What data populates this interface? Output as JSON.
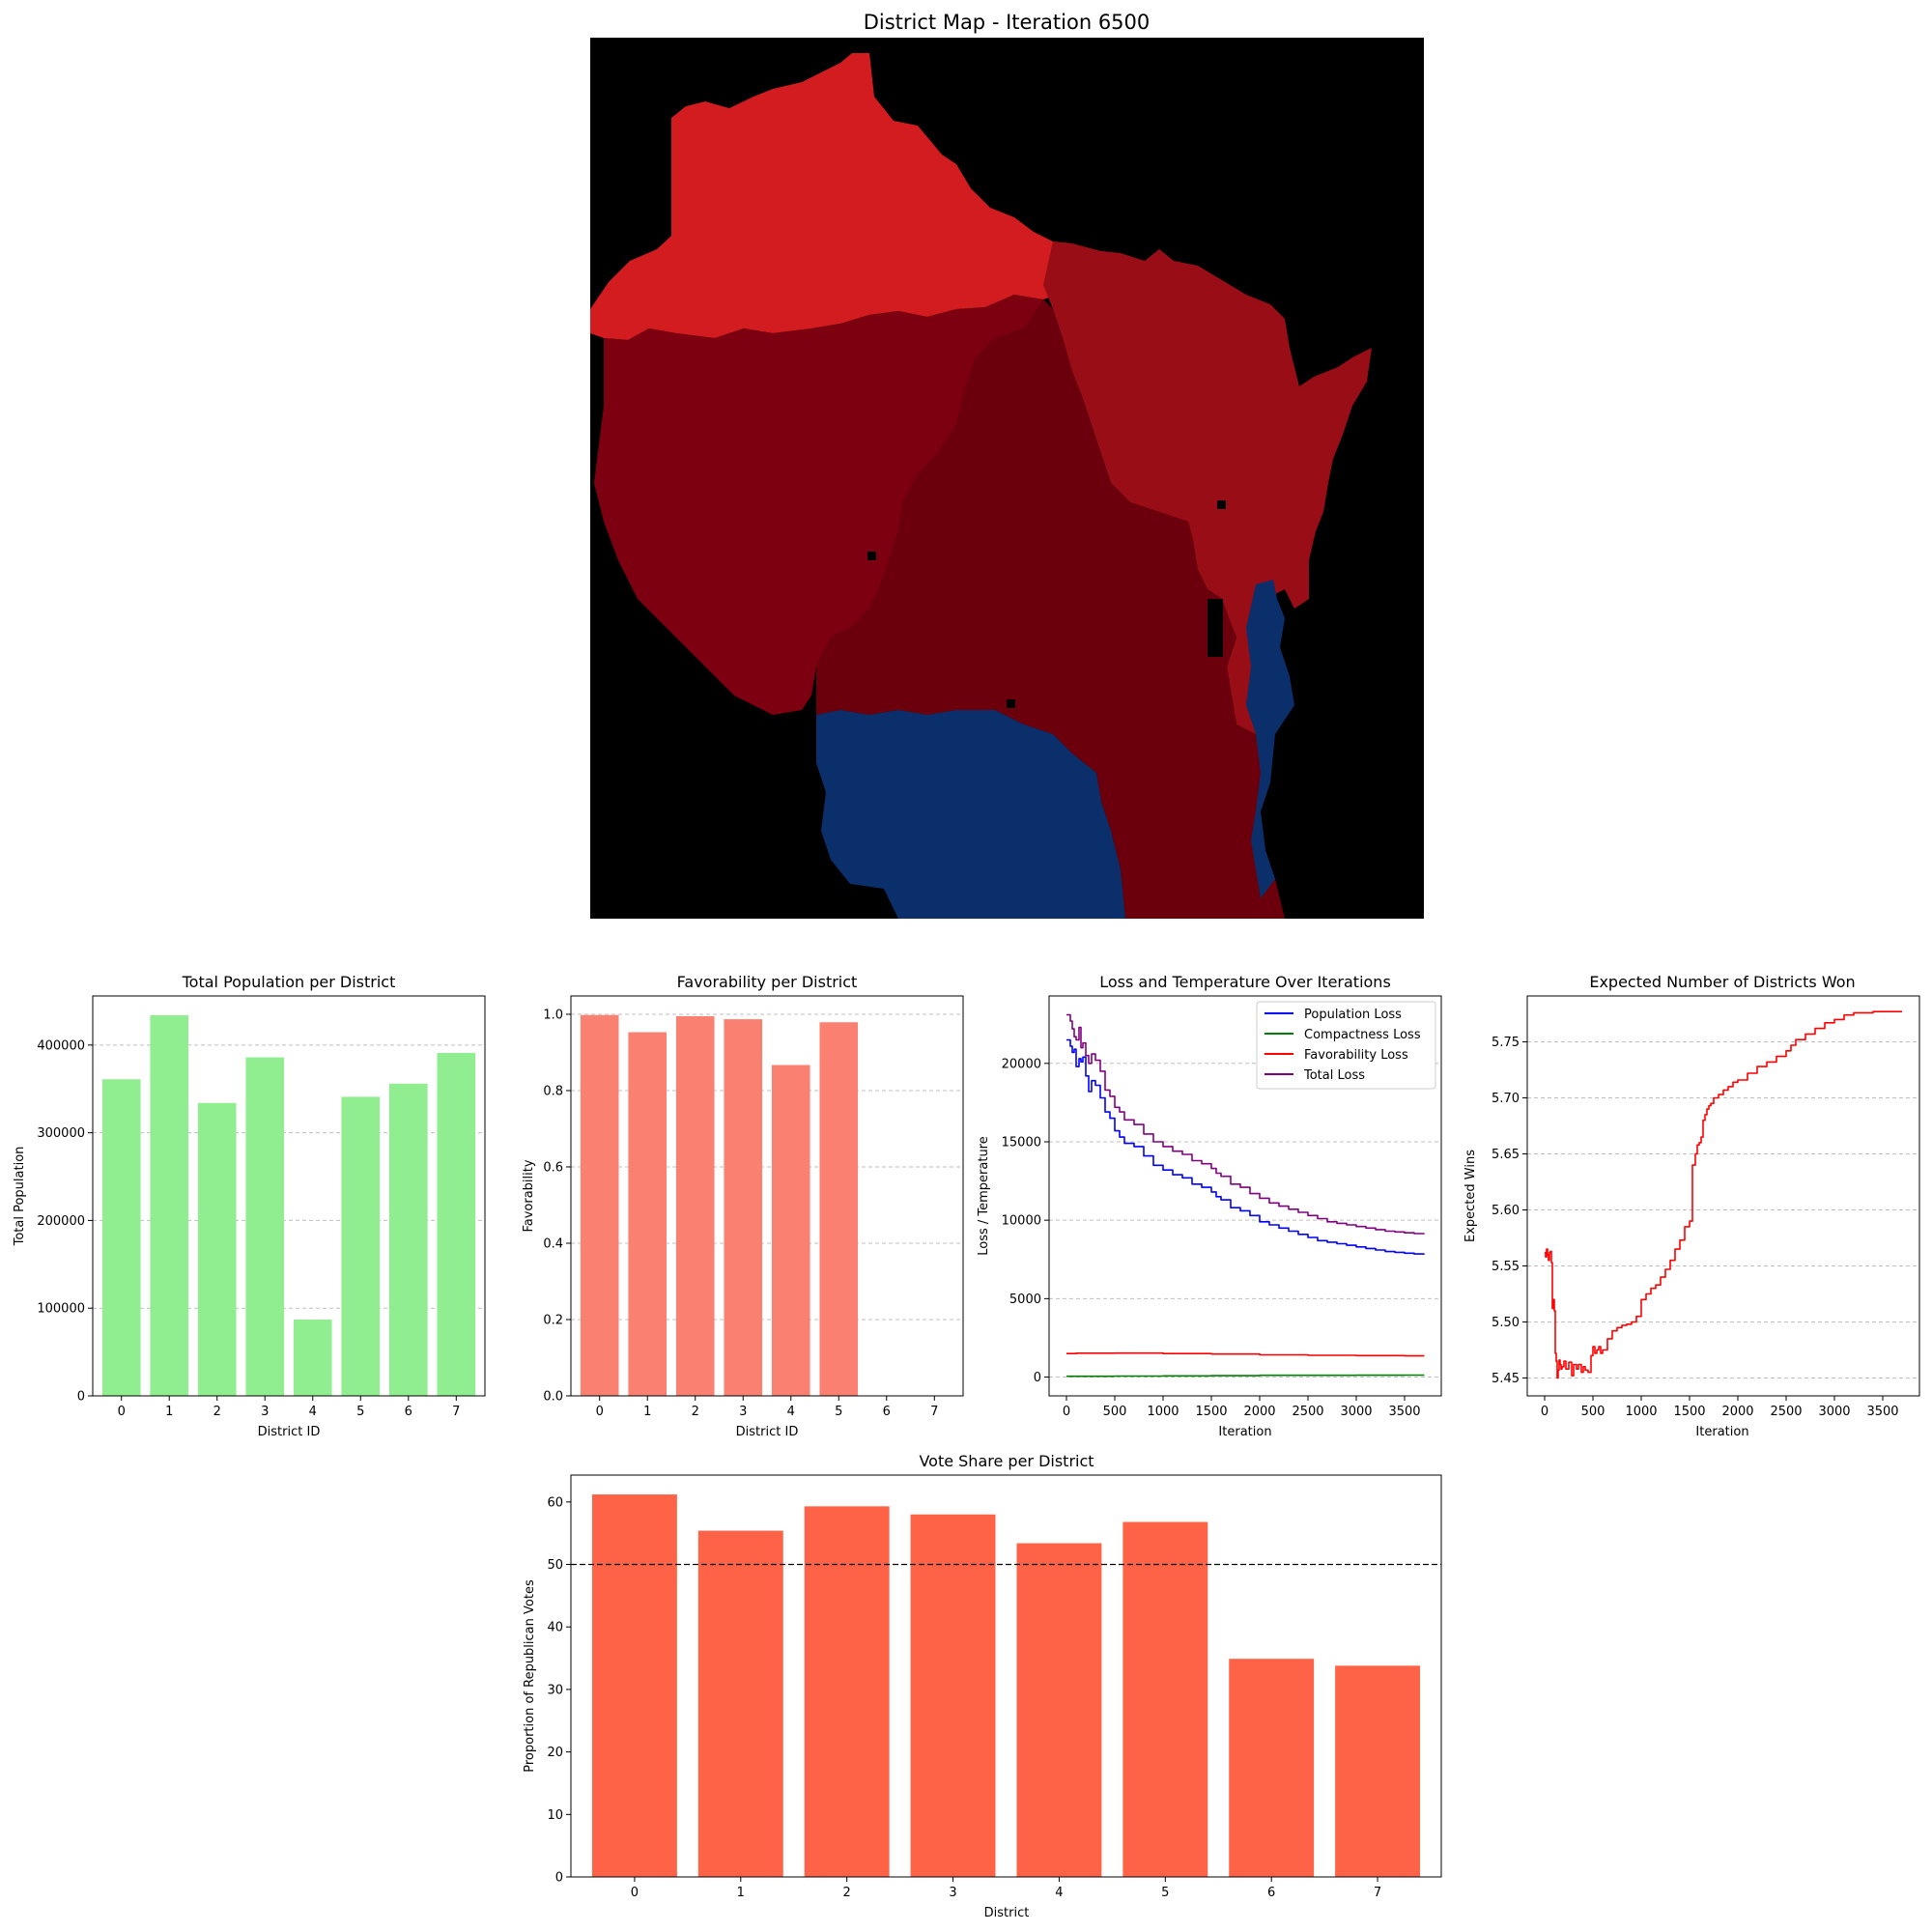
{
  "map": {
    "title": "District Map - Iteration 6500",
    "colors": {
      "background": "#000000",
      "north": "#d31c1f",
      "northeast": "#980d16",
      "center": "#6b000c",
      "west": "#7c0010",
      "dem": "#0a2f6b"
    }
  },
  "chart_data": [
    {
      "id": "population",
      "type": "bar",
      "title": "Total Population per District",
      "xlabel": "District ID",
      "ylabel": "Total Population",
      "categories": [
        "0",
        "1",
        "2",
        "3",
        "4",
        "5",
        "6",
        "7"
      ],
      "values": [
        361000,
        434000,
        334000,
        386000,
        87000,
        341000,
        356000,
        391000
      ],
      "ylim": [
        0,
        456000
      ],
      "yticks": [
        0,
        100000,
        200000,
        300000,
        400000
      ],
      "ytick_labels": [
        "0",
        "100000",
        "200000",
        "300000",
        "400000"
      ],
      "color": "#90ee90",
      "grid": true
    },
    {
      "id": "favorability",
      "type": "bar",
      "title": "Favorability per District",
      "xlabel": "District ID",
      "ylabel": "Favorability",
      "categories": [
        "0",
        "1",
        "2",
        "3",
        "4",
        "5",
        "6",
        "7"
      ],
      "values": [
        0.998,
        0.953,
        0.995,
        0.987,
        0.867,
        0.979,
        0,
        0
      ],
      "ylim": [
        0,
        1.048
      ],
      "yticks": [
        0,
        0.2,
        0.4,
        0.6,
        0.8,
        1.0
      ],
      "ytick_labels": [
        "0.0",
        "0.2",
        "0.4",
        "0.6",
        "0.8",
        "1.0"
      ],
      "color": "#fa8072",
      "grid": true
    },
    {
      "id": "loss",
      "type": "line",
      "title": "Loss and Temperature Over Iterations",
      "xlabel": "Iteration",
      "ylabel": "Loss / Temperature",
      "xlim": [
        -180,
        3880
      ],
      "ylim": [
        -1200,
        24300
      ],
      "xticks": [
        0,
        500,
        1000,
        1500,
        2000,
        2500,
        3000,
        3500
      ],
      "xtick_labels": [
        "0",
        "500",
        "1000",
        "1500",
        "2000",
        "2500",
        "3000",
        "3500"
      ],
      "yticks": [
        0,
        5000,
        10000,
        15000,
        20000
      ],
      "ytick_labels": [
        "0",
        "5000",
        "10000",
        "15000",
        "20000"
      ],
      "legend_position": "upper right",
      "grid": true,
      "series": [
        {
          "name": "Population Loss",
          "color": "#0000ff",
          "x": [
            0,
            40,
            60,
            80,
            100,
            130,
            150,
            170,
            200,
            230,
            260,
            300,
            350,
            400,
            450,
            500,
            550,
            600,
            700,
            800,
            900,
            1000,
            1100,
            1200,
            1300,
            1400,
            1500,
            1550,
            1600,
            1700,
            1800,
            1900,
            2000,
            2100,
            2200,
            2300,
            2400,
            2500,
            2600,
            2700,
            2800,
            2900,
            3000,
            3100,
            3200,
            3300,
            3400,
            3500,
            3600,
            3700
          ],
          "y": [
            21500,
            21100,
            20700,
            20900,
            19800,
            20300,
            20100,
            20400,
            19200,
            18200,
            18900,
            18600,
            17800,
            16900,
            16500,
            15700,
            15300,
            14900,
            14700,
            14100,
            13500,
            13200,
            12900,
            12700,
            12300,
            12100,
            11800,
            11500,
            11300,
            10800,
            10600,
            10300,
            9900,
            9700,
            9500,
            9300,
            9100,
            8900,
            8700,
            8600,
            8500,
            8400,
            8300,
            8200,
            8100,
            8000,
            7950,
            7900,
            7850,
            7800
          ]
        },
        {
          "name": "Compactness Loss",
          "color": "#008000",
          "x": [
            0,
            500,
            1000,
            1500,
            2000,
            2500,
            3000,
            3500,
            3700
          ],
          "y": [
            50,
            60,
            75,
            90,
            110,
            115,
            120,
            125,
            130
          ]
        },
        {
          "name": "Favorability Loss",
          "color": "#ff0000",
          "x": [
            0,
            100,
            500,
            1000,
            1500,
            2000,
            2500,
            3000,
            3500,
            3700
          ],
          "y": [
            1500,
            1520,
            1530,
            1500,
            1470,
            1420,
            1390,
            1370,
            1350,
            1340
          ]
        },
        {
          "name": "Total Loss",
          "color": "#800080",
          "x": [
            0,
            40,
            60,
            80,
            100,
            130,
            150,
            170,
            200,
            230,
            260,
            300,
            350,
            400,
            450,
            500,
            550,
            600,
            700,
            800,
            900,
            1000,
            1100,
            1200,
            1300,
            1400,
            1500,
            1550,
            1600,
            1700,
            1800,
            1900,
            2000,
            2100,
            2200,
            2300,
            2400,
            2500,
            2600,
            2700,
            2800,
            2900,
            3000,
            3100,
            3200,
            3300,
            3400,
            3500,
            3600,
            3700
          ],
          "y": [
            23100,
            22700,
            22200,
            21700,
            21500,
            22300,
            21000,
            21300,
            20500,
            20000,
            20600,
            20200,
            19500,
            18300,
            17900,
            17200,
            16900,
            16400,
            16100,
            15500,
            15000,
            14700,
            14400,
            14200,
            13800,
            13600,
            13300,
            13000,
            12800,
            12300,
            12100,
            11700,
            11400,
            11100,
            10900,
            10700,
            10500,
            10300,
            10100,
            9900,
            9800,
            9700,
            9600,
            9500,
            9400,
            9300,
            9250,
            9200,
            9150,
            9100
          ]
        }
      ]
    },
    {
      "id": "wins",
      "type": "line",
      "title": "Expected Number of Districts Won",
      "xlabel": "Iteration",
      "ylabel": "Expected Wins",
      "xlim": [
        -180,
        3880
      ],
      "ylim": [
        5.434,
        5.791
      ],
      "xticks": [
        0,
        500,
        1000,
        1500,
        2000,
        2500,
        3000,
        3500
      ],
      "xtick_labels": [
        "0",
        "500",
        "1000",
        "1500",
        "2000",
        "2500",
        "3000",
        "3500"
      ],
      "yticks": [
        5.45,
        5.5,
        5.55,
        5.6,
        5.65,
        5.7,
        5.75
      ],
      "ytick_labels": [
        "5.45",
        "5.50",
        "5.55",
        "5.60",
        "5.65",
        "5.70",
        "5.75"
      ],
      "grid": true,
      "series": [
        {
          "name": "Expected Wins",
          "color": "#ff0000",
          "x": [
            0,
            10,
            20,
            30,
            40,
            50,
            60,
            70,
            80,
            90,
            100,
            110,
            120,
            130,
            140,
            150,
            160,
            170,
            180,
            200,
            220,
            250,
            280,
            300,
            330,
            350,
            380,
            400,
            420,
            450,
            480,
            500,
            520,
            540,
            560,
            580,
            600,
            650,
            700,
            750,
            800,
            850,
            900,
            950,
            1000,
            1050,
            1100,
            1150,
            1200,
            1250,
            1300,
            1350,
            1400,
            1450,
            1500,
            1530,
            1560,
            1580,
            1600,
            1620,
            1640,
            1660,
            1680,
            1700,
            1720,
            1750,
            1800,
            1850,
            1900,
            1950,
            2000,
            2100,
            2200,
            2300,
            2400,
            2500,
            2550,
            2600,
            2700,
            2800,
            2900,
            3000,
            3100,
            3200,
            3300,
            3400,
            3500,
            3600,
            3700
          ],
          "y": [
            5.562,
            5.558,
            5.565,
            5.56,
            5.555,
            5.562,
            5.563,
            5.553,
            5.512,
            5.52,
            5.51,
            5.472,
            5.465,
            5.45,
            5.457,
            5.466,
            5.462,
            5.458,
            5.46,
            5.465,
            5.458,
            5.464,
            5.452,
            5.462,
            5.458,
            5.462,
            5.455,
            5.46,
            5.457,
            5.455,
            5.47,
            5.478,
            5.472,
            5.475,
            5.478,
            5.472,
            5.475,
            5.485,
            5.492,
            5.495,
            5.497,
            5.498,
            5.5,
            5.505,
            5.52,
            5.525,
            5.53,
            5.533,
            5.54,
            5.547,
            5.555,
            5.565,
            5.573,
            5.585,
            5.59,
            5.64,
            5.65,
            5.658,
            5.66,
            5.665,
            5.68,
            5.685,
            5.69,
            5.693,
            5.695,
            5.7,
            5.703,
            5.707,
            5.71,
            5.714,
            5.716,
            5.722,
            5.728,
            5.732,
            5.737,
            5.742,
            5.747,
            5.752,
            5.757,
            5.762,
            5.767,
            5.77,
            5.774,
            5.776,
            5.776,
            5.777,
            5.777,
            5.777,
            5.777
          ]
        }
      ]
    },
    {
      "id": "voteshare",
      "type": "bar",
      "title": "Vote Share per District",
      "xlabel": "District",
      "ylabel": "Proportion of Republican Votes",
      "categories": [
        "0",
        "1",
        "2",
        "3",
        "4",
        "5",
        "6",
        "7"
      ],
      "values": [
        61.2,
        55.4,
        59.3,
        58.0,
        53.4,
        56.8,
        34.9,
        33.8
      ],
      "ylim": [
        0,
        64.3
      ],
      "yticks": [
        0,
        10,
        20,
        30,
        40,
        50,
        60
      ],
      "ytick_labels": [
        "0",
        "10",
        "20",
        "30",
        "40",
        "50",
        "60"
      ],
      "reference_line": 50,
      "color": "#ff6347",
      "grid": false
    }
  ]
}
